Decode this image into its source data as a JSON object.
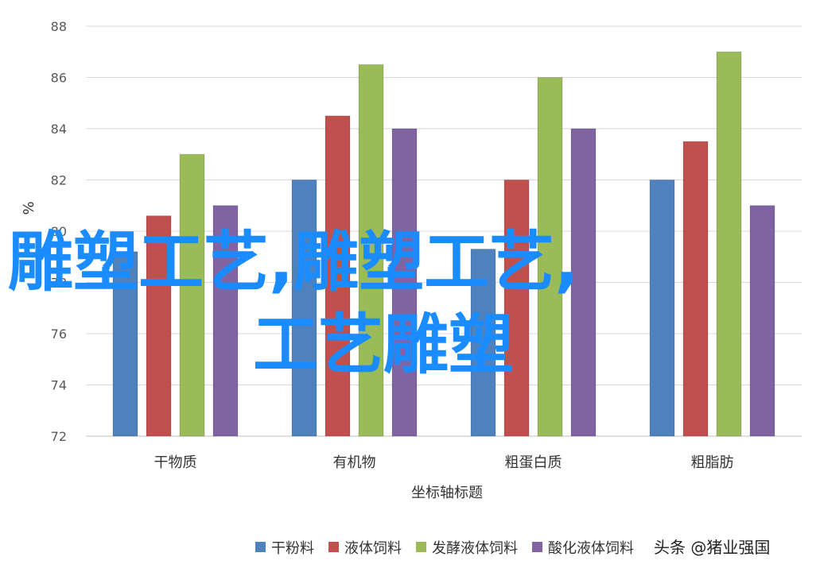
{
  "chart_data": {
    "type": "bar",
    "title": "",
    "xlabel": "坐标轴标题",
    "ylabel": "%",
    "ylim": [
      72,
      88
    ],
    "yticks": [
      72,
      74,
      76,
      78,
      80,
      82,
      84,
      86,
      88
    ],
    "categories": [
      "干物质",
      "有机物",
      "粗蛋白质",
      "粗脂肪"
    ],
    "series": [
      {
        "name": "干粉料",
        "color": "#4f81bd",
        "values": [
          79.2,
          82,
          79.3,
          82
        ]
      },
      {
        "name": "液体饲料",
        "color": "#c0504d",
        "values": [
          80.6,
          84.5,
          82,
          83.5
        ]
      },
      {
        "name": "发酵液体饲料",
        "color": "#9bbb59",
        "values": [
          83,
          86.5,
          86,
          87
        ]
      },
      {
        "name": "酸化液体饲料",
        "color": "#8064a2",
        "values": [
          81,
          84,
          84,
          81
        ]
      }
    ],
    "grid": true,
    "legend_position": "bottom"
  },
  "overlay": {
    "line1": "雕塑工艺,雕塑工艺,",
    "line2": "工艺雕塑",
    "color": "#1a8cff"
  },
  "watermark": "头条 @猪业强国"
}
